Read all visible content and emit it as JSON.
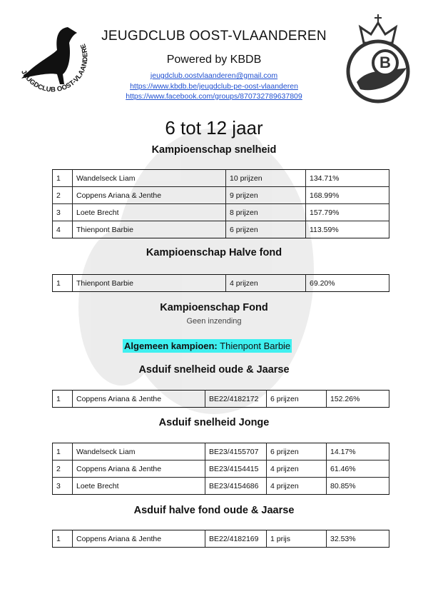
{
  "header": {
    "title": "JEUGDCLUB OOST-VLAANDEREN",
    "subtitle": "Powered by KBDB",
    "email": "jeugdclub.oostvlaanderen@gmail.com",
    "links": [
      "https://www.kbdb.be/jeugdclub-pe-oost-vlaanderen",
      "https://www.facebook.com/groups/870732789637809"
    ],
    "logo_left_text": "JEUGDCLUB OOST-VLAANDEREN",
    "logo_right_letter": "B"
  },
  "page_title": "6 tot 12 jaar",
  "sections": [
    {
      "title": "Kampioenschap snelheid",
      "rows": [
        [
          "1",
          "Wandelseck Liam",
          "10 prijzen",
          "134.71%"
        ],
        [
          "2",
          "Coppens Ariana & Jenthe",
          "9 prijzen",
          "168.99%"
        ],
        [
          "3",
          "Loete Brecht",
          "8 prijzen",
          "157.79%"
        ],
        [
          "4",
          "Thienpont Barbie",
          "6 prijzen",
          "113.59%"
        ]
      ]
    },
    {
      "title": "Kampioenschap Halve fond",
      "rows": [
        [
          "1",
          "Thienpont Barbie",
          "4 prijzen",
          "69.20%"
        ]
      ]
    },
    {
      "title": "Kampioenschap Fond",
      "note": "Geen inzending"
    },
    {
      "title": "Asduif snelheid oude & Jaarse",
      "rows": [
        [
          "1",
          "Coppens Ariana & Jenthe",
          "BE22/4182172",
          "6 prijzen",
          "152.26%"
        ]
      ]
    },
    {
      "title": "Asduif snelheid Jonge",
      "rows": [
        [
          "1",
          "Wandelseck Liam",
          "BE23/4155707",
          "6 prijzen",
          "14.17%"
        ],
        [
          "2",
          "Coppens Ariana & Jenthe",
          "BE23/4154415",
          "4 prijzen",
          "61.46%"
        ],
        [
          "3",
          "Loete Brecht",
          "BE23/4154686",
          "4 prijzen",
          "80.85%"
        ]
      ]
    },
    {
      "title": "Asduif halve fond oude & Jaarse",
      "rows": [
        [
          "1",
          "Coppens Ariana & Jenthe",
          "BE22/4182169",
          "1 prijs",
          "32.53%"
        ]
      ]
    }
  ],
  "champion": {
    "label": "Algemeen kampioen:",
    "name": "Thienpont Barbie"
  }
}
